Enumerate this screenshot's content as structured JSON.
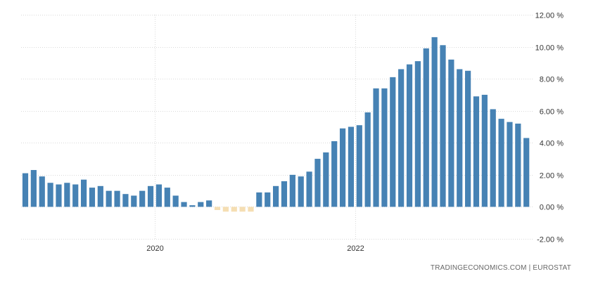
{
  "source": "TRADINGECONOMICS.COM  |  EUROSTAT",
  "colors": {
    "positive": "#4682b4",
    "negative": "#f5deb3",
    "grid": "#d9d9d9"
  },
  "chart_data": {
    "type": "bar",
    "title": "",
    "xlabel": "",
    "ylabel": "",
    "ylim": [
      -2,
      12
    ],
    "yticks": [
      12,
      10,
      8,
      6,
      4,
      2,
      0,
      -2
    ],
    "ytick_labels": [
      "12.00 %",
      "10.00 %",
      "8.00 %",
      "6.00 %",
      "4.00 %",
      "2.00 %",
      "0.00 %",
      "-2.00 %"
    ],
    "xtick_labels": [
      {
        "label": "2020",
        "index": 16
      },
      {
        "label": "2022",
        "index": 40
      }
    ],
    "grid": true,
    "series": [
      {
        "values": [
          2.1,
          2.3,
          1.9,
          1.5,
          1.4,
          1.5,
          1.4,
          1.7,
          1.2,
          1.3,
          1.0,
          1.0,
          0.8,
          0.7,
          1.0,
          1.3,
          1.4,
          1.2,
          0.7,
          0.3,
          0.1,
          0.3,
          0.4,
          -0.2,
          -0.3,
          -0.3,
          -0.3,
          -0.3,
          0.9,
          0.9,
          1.3,
          1.6,
          2.0,
          1.9,
          2.2,
          3.0,
          3.4,
          4.1,
          4.9,
          5.0,
          5.1,
          5.9,
          7.4,
          7.4,
          8.1,
          8.6,
          8.9,
          9.1,
          9.9,
          10.6,
          10.1,
          9.2,
          8.6,
          8.5,
          6.9,
          7.0,
          6.1,
          5.5,
          5.3,
          5.2,
          4.3
        ]
      }
    ]
  }
}
